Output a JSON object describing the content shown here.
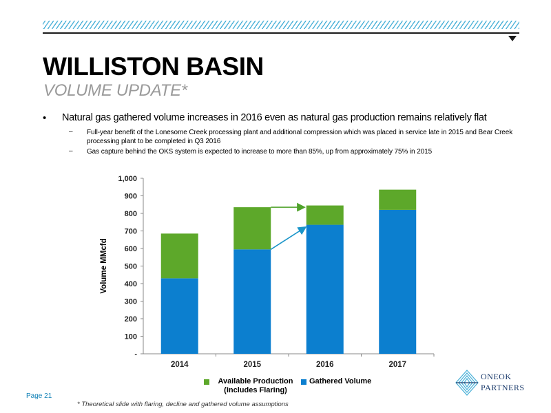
{
  "header": {
    "title": "WILLISTON BASIN",
    "subtitle": "VOLUME UPDATE*"
  },
  "bullets": {
    "main_marker": "•",
    "main": "Natural gas gathered volume increases in 2016 even as natural gas production remains relatively flat",
    "sub_marker": "–",
    "sub": [
      "Full-year benefit of the Lonesome Creek processing plant and additional compression which was placed in service late in 2015 and Bear Creek processing plant to be completed in Q3 2016",
      "Gas capture behind the OKS system is expected to increase to more than 85%, up from approximately 75% in 2015"
    ]
  },
  "footer": {
    "page": "Page 21",
    "note": "* Theoretical slide with flaring, decline and gathered volume assumptions",
    "logo_line1": "ONEOK",
    "logo_line2": "PARTNERS"
  },
  "colors": {
    "gathered": "#0c7fcf",
    "available": "#5da82a",
    "arrow_green": "#4fa22a",
    "arrow_blue": "#1a95c9",
    "accent": "#4fb3d9"
  },
  "chart_data": {
    "type": "bar",
    "stacked": true,
    "categories": [
      "2014",
      "2015",
      "2016",
      "2017"
    ],
    "series": [
      {
        "name": "Gathered Volume",
        "values": [
          430,
          595,
          735,
          820
        ]
      },
      {
        "name": "Available Production (Includes Flaring)",
        "values": [
          255,
          240,
          110,
          115
        ]
      }
    ],
    "ylabel": "Volume MMcfd",
    "xlabel": "",
    "ylim": [
      0,
      1000
    ],
    "yticks": [
      "-",
      "100",
      "200",
      "300",
      "400",
      "500",
      "600",
      "700",
      "800",
      "900",
      "1,000"
    ],
    "legend": [
      "Available Production (Includes Flaring)",
      "Gathered Volume"
    ],
    "legend_position": "bottom",
    "grid": false
  }
}
